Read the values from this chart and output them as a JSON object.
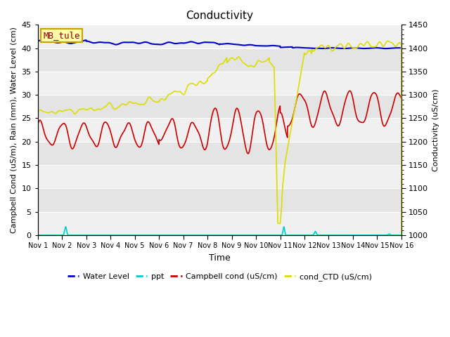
{
  "title": "Conductivity",
  "xlabel": "Time",
  "ylabel_left": "Campbell Cond (uS/m), Rain (mm), Water Level (cm)",
  "ylabel_right": "Conductivity (uS/cm)",
  "ylim_left": [
    0,
    45
  ],
  "ylim_right": [
    1000,
    1450
  ],
  "xlim": [
    0,
    15
  ],
  "xtick_labels": [
    "Nov 1",
    "Nov 2",
    "Nov 3",
    "Nov 4",
    "Nov 5",
    "Nov 6",
    "Nov 7",
    "Nov 8",
    "Nov 9",
    "Nov 10",
    "Nov 11",
    "Nov 12",
    "Nov 13",
    "Nov 14",
    "Nov 15",
    "Nov 16"
  ],
  "yticks_left": [
    0,
    5,
    10,
    15,
    20,
    25,
    30,
    35,
    40,
    45
  ],
  "yticks_right": [
    1000,
    1050,
    1100,
    1150,
    1200,
    1250,
    1300,
    1350,
    1400,
    1450
  ],
  "bg_color": "#e8e8e8",
  "bg_stripe_light": "#f0f0f0",
  "bg_stripe_dark": "#e0e0e0",
  "site_label": "MB_tule",
  "site_label_color": "#8B0000",
  "site_label_bg": "#ffffaa",
  "site_label_border": "#c8a000",
  "colors": {
    "water_level": "#0000cc",
    "ppt": "#00cccc",
    "campbell_cond": "#cc0000",
    "cond_CTD": "#dddd00"
  },
  "legend_labels": [
    "Water Level",
    "ppt",
    "Campbell cond (uS/cm)",
    "cond_CTD (uS/cm)"
  ]
}
